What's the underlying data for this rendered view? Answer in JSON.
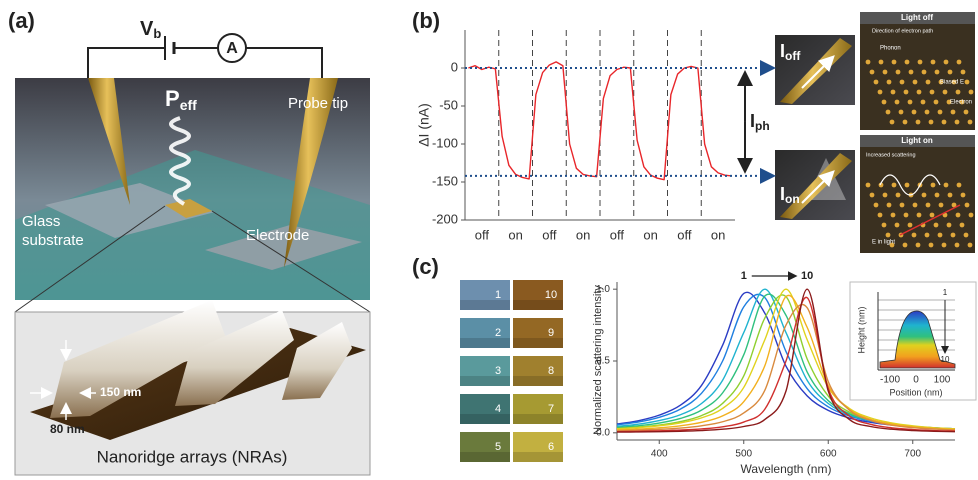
{
  "panels": {
    "a": {
      "label": "(a)",
      "voltage": {
        "main": "V",
        "sub": "b"
      },
      "ammeter": "A",
      "power": {
        "main": "P",
        "sub": "eff"
      },
      "probe_tip": "Probe tip",
      "substrate": [
        "Glass",
        "substrate"
      ],
      "electrode": "Electrode",
      "width": "150 nm",
      "height": "80 nm",
      "caption": "Nanoridge arrays (NRAs)"
    },
    "b": {
      "label": "(b)",
      "i_off": {
        "main": "I",
        "sub": "off"
      },
      "i_on": {
        "main": "I",
        "sub": "on"
      },
      "i_ph": {
        "main": "I",
        "sub": "ph"
      },
      "light_off": {
        "title": "Light off",
        "notes": [
          "Direction of electron path",
          "Phonon",
          "Biased E",
          "Electron"
        ]
      },
      "light_on": {
        "title": "Light on",
        "notes": [
          "Increased scattering",
          "E in light"
        ]
      }
    },
    "c": {
      "label": "(c)",
      "swatches": [
        1,
        2,
        3,
        4,
        5,
        6,
        7,
        8,
        9,
        10
      ],
      "inset": {
        "y_label": "Height (nm)",
        "x_label": "Position (nm)",
        "xticks": [
          -100,
          0,
          100
        ],
        "arrow_start": "1",
        "arrow_end": "10"
      }
    }
  },
  "chart_data": [
    {
      "type": "line",
      "y_label": "ΔI (nA)",
      "categories": [
        null,
        null,
        "off",
        null,
        null,
        null,
        null,
        "on",
        null,
        null,
        null,
        null,
        "off",
        null,
        null,
        null,
        null,
        "on",
        null,
        null,
        null,
        null,
        "off",
        null,
        null,
        null,
        null,
        "on",
        null,
        null,
        null,
        null,
        "off",
        null,
        null,
        null,
        null,
        "on",
        null,
        null
      ],
      "series": [
        {
          "color": "#e8262a",
          "values": [
            0,
            3,
            -2,
            1,
            -1,
            -90,
            -128,
            -140,
            -144,
            -146,
            -35,
            -6,
            4,
            8,
            3,
            -100,
            -132,
            -140,
            -142,
            -143,
            -40,
            -10,
            -2,
            1,
            0,
            -95,
            -130,
            -141,
            -145,
            -147,
            -35,
            -8,
            0,
            2,
            0,
            -100,
            -130,
            -138,
            -141,
            -142
          ]
        }
      ],
      "ylim": [
        -200,
        50
      ],
      "yticks": [
        -200,
        -150,
        -100,
        -50,
        0
      ]
    },
    {
      "type": "line",
      "x_label": "Wavelength (nm)",
      "y_label": "Normalized scattering intensity",
      "annotation": {
        "start": "1",
        "end": "10"
      },
      "x": [
        350,
        375,
        400,
        425,
        450,
        475,
        500,
        525,
        550,
        575,
        600,
        625,
        650,
        675,
        700,
        725,
        750
      ],
      "series": [
        {
          "color": "#2b3cc4",
          "values": [
            0.061,
            0.084,
            0.123,
            0.192,
            0.33,
            0.61,
            0.97,
            0.832,
            0.464,
            0.257,
            0.156,
            0.103,
            0.073,
            0.054,
            0.041,
            0.033,
            0.026
          ]
        },
        {
          "color": "#1f7fe0",
          "values": [
            0.056,
            0.075,
            0.108,
            0.165,
            0.275,
            0.5,
            0.877,
            0.941,
            0.566,
            0.308,
            0.181,
            0.117,
            0.081,
            0.059,
            0.045,
            0.035,
            0.028
          ]
        },
        {
          "color": "#1fb3cf",
          "values": [
            0.045,
            0.06,
            0.085,
            0.126,
            0.204,
            0.366,
            0.698,
            1,
            0.698,
            0.366,
            0.204,
            0.126,
            0.085,
            0.06,
            0.045,
            0.035,
            0.028
          ]
        },
        {
          "color": "#2fc07e",
          "values": [
            0.037,
            0.049,
            0.068,
            0.1,
            0.158,
            0.278,
            0.543,
            0.953,
            0.818,
            0.424,
            0.224,
            0.133,
            0.087,
            0.06,
            0.044,
            0.034,
            0.027
          ]
        },
        {
          "color": "#8fcf2f",
          "values": [
            0.03,
            0.04,
            0.054,
            0.078,
            0.12,
            0.205,
            0.396,
            0.8,
            0.948,
            0.515,
            0.256,
            0.144,
            0.09,
            0.061,
            0.044,
            0.033,
            0.026
          ]
        },
        {
          "color": "#e0d21e",
          "values": [
            0.028,
            0.036,
            0.049,
            0.069,
            0.104,
            0.17,
            0.316,
            0.649,
            1,
            0.649,
            0.316,
            0.17,
            0.104,
            0.069,
            0.049,
            0.036,
            0.028
          ]
        },
        {
          "color": "#f2b01e",
          "values": [
            0.021,
            0.026,
            0.035,
            0.049,
            0.073,
            0.118,
            0.217,
            0.468,
            0.949,
            0.735,
            0.328,
            0.163,
            0.094,
            0.061,
            0.042,
            0.031,
            0.024
          ]
        },
        {
          "color": "#d98a3e",
          "values": [
            0.014,
            0.018,
            0.024,
            0.033,
            0.049,
            0.077,
            0.138,
            0.297,
            0.75,
            0.871,
            0.356,
            0.158,
            0.086,
            0.053,
            0.036,
            0.026,
            0.019
          ]
        },
        {
          "color": "#d0302e",
          "values": [
            0.008,
            0.01,
            0.014,
            0.019,
            0.027,
            0.042,
            0.075,
            0.165,
            0.5,
            0.941,
            0.308,
            0.117,
            0.059,
            0.035,
            0.023,
            0.016,
            0.012
          ]
        },
        {
          "color": "#8b1a1a",
          "values": [
            0.005,
            0.006,
            0.008,
            0.011,
            0.016,
            0.025,
            0.044,
            0.093,
            0.291,
            1,
            0.291,
            0.093,
            0.044,
            0.025,
            0.016,
            0.011,
            0.008
          ]
        }
      ],
      "xlim": [
        350,
        750
      ],
      "xticks": [
        400,
        500,
        600,
        700
      ],
      "ylim": [
        -0.05,
        1.05
      ],
      "yticks": [
        {
          "value": 0,
          "label": "0.0"
        },
        {
          "value": 0.5,
          "label": "0.5"
        },
        {
          "value": 1,
          "label": "1.0"
        }
      ]
    }
  ]
}
